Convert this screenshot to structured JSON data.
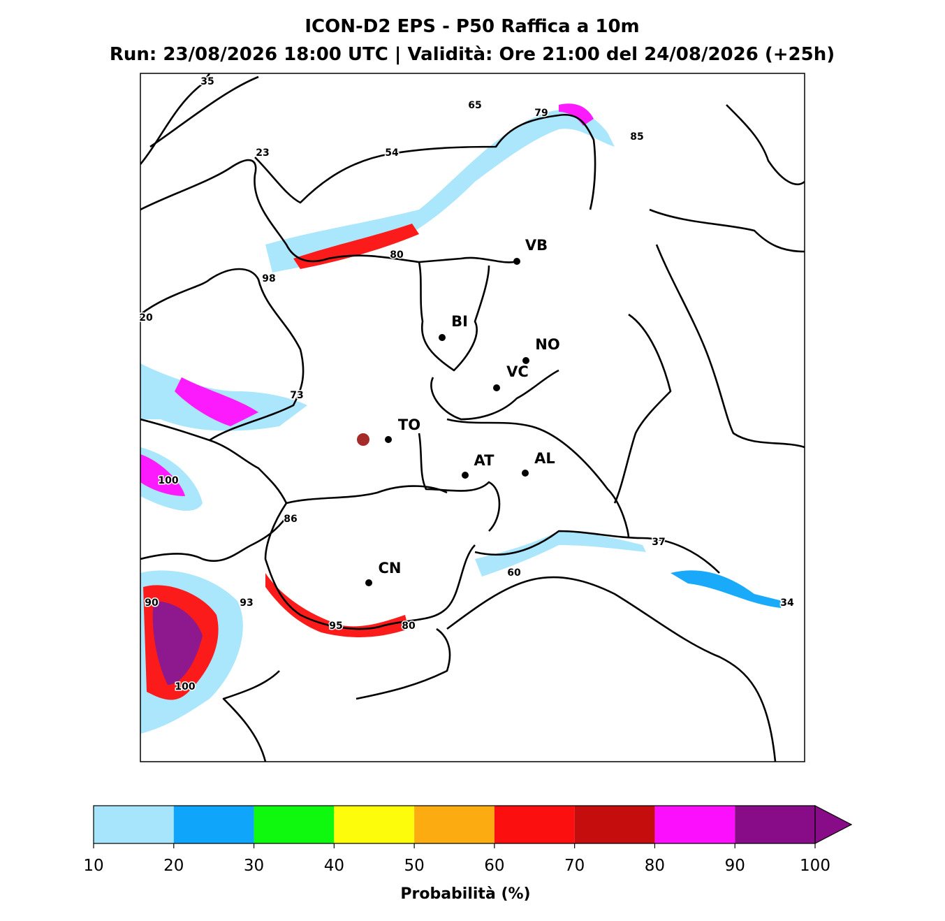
{
  "header": {
    "title": "ICON-D2 EPS - P50 Raffica a 10m",
    "subtitle": "Run: 23/08/2026 18:00 UTC | Validità: Ore 21:00 del 24/08/2026 (+25h)"
  },
  "map": {
    "cities": [
      {
        "label": "VB"
      },
      {
        "label": "BI"
      },
      {
        "label": "NO"
      },
      {
        "label": "VC"
      },
      {
        "label": "TO"
      },
      {
        "label": "AT"
      },
      {
        "label": "AL"
      },
      {
        "label": "CN"
      }
    ],
    "contour_labels": [
      35,
      65,
      79,
      85,
      23,
      54,
      80,
      98,
      20,
      73,
      100,
      86,
      37,
      60,
      90,
      93,
      34,
      95,
      80,
      100
    ]
  },
  "colorbar": {
    "bounds": [
      10,
      20,
      30,
      40,
      50,
      60,
      70,
      80,
      90,
      100
    ],
    "colors": [
      "#a6e5fc",
      "#0ea5fa",
      "#0ff90f",
      "#fcfc0b",
      "#fcab11",
      "#fc0f0f",
      "#c60d0d",
      "#fc0ffc",
      "#880c88"
    ],
    "extend": "max",
    "label": "Probabilità (%)"
  }
}
